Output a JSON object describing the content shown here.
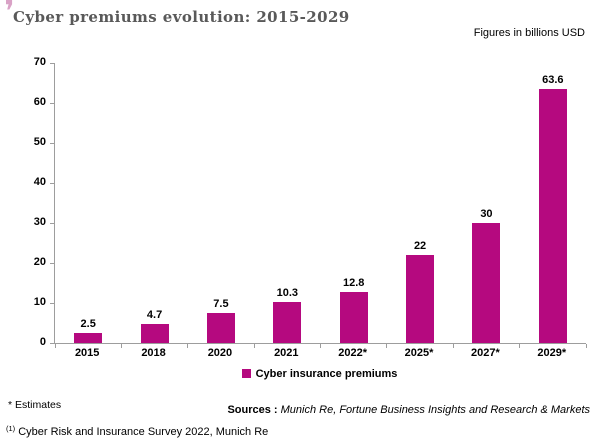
{
  "header": {
    "title": "Cyber premiums evolution: 2015-2029",
    "accent_glyph": "❜",
    "note": "Figures in billions USD"
  },
  "chart_data": {
    "type": "bar",
    "title": "Cyber premiums evolution: 2015-2029",
    "categories": [
      "2015",
      "2018",
      "2020",
      "2021",
      "2022*",
      "2025*",
      "2027*",
      "2029*"
    ],
    "values": [
      2.5,
      4.7,
      7.5,
      10.3,
      12.8,
      22,
      30,
      63.6
    ],
    "value_labels": [
      "2.5",
      "4.7",
      "7.5",
      "10.3",
      "12.8",
      "22",
      "30",
      "63.6"
    ],
    "series_label": "Cyber insurance premiums",
    "ylabel": "",
    "xlabel": "",
    "ylim": [
      0,
      70
    ],
    "yticks": [
      0,
      10,
      20,
      30,
      40,
      50,
      60,
      70
    ],
    "grid": false,
    "legend_position": "bottom",
    "note": "Figures in billions USD"
  },
  "legend": {
    "label": "Cyber insurance premiums"
  },
  "footnotes": {
    "estimates": "* Estimates",
    "sources_label": "Sources :",
    "sources_text": " Munich Re, Fortune Business Insights and Research & Markets",
    "footnote1_marker": "(1)",
    "footnote1_text": " Cyber Risk and Insurance Survey 2022, Munich Re"
  },
  "colors": {
    "bar": "#b5097f",
    "accent_pink": "#d9a2c6",
    "title_gray": "#595959",
    "axis_gray": "#9d9d9d"
  }
}
